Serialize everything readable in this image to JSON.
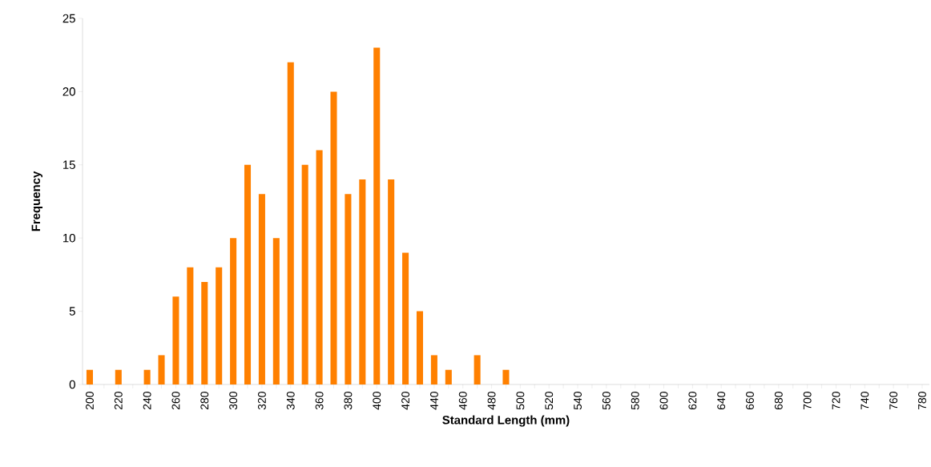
{
  "chart_data": {
    "type": "bar",
    "xlabel": "Standard Length (mm)",
    "ylabel": "Frequency",
    "categories": [
      "200",
      null,
      "220",
      null,
      "240",
      null,
      "260",
      null,
      "280",
      null,
      "300",
      null,
      "320",
      null,
      "340",
      null,
      "360",
      null,
      "380",
      null,
      "400",
      null,
      "420",
      null,
      "440",
      null,
      "460",
      null,
      "480",
      null,
      "500",
      null,
      "520",
      null,
      "540",
      null,
      "560",
      null,
      "580",
      null,
      "600",
      null,
      "620",
      null,
      "640",
      null,
      "660",
      null,
      "680",
      null,
      "700",
      null,
      "720",
      null,
      "740",
      null,
      "760",
      null,
      "780"
    ],
    "values": [
      1,
      0,
      1,
      0,
      1,
      2,
      6,
      8,
      7,
      8,
      10,
      15,
      13,
      10,
      22,
      15,
      16,
      20,
      13,
      14,
      23,
      14,
      9,
      5,
      2,
      1,
      0,
      2,
      0,
      1,
      0,
      0,
      0,
      0,
      0,
      0,
      0,
      0,
      0,
      0,
      0,
      0,
      0,
      0,
      0,
      0,
      0,
      0,
      0,
      0,
      0,
      0,
      0,
      0,
      0,
      0,
      0,
      0,
      0
    ],
    "color": "#ff8000",
    "ylim": [
      0,
      25
    ],
    "yticks": [
      0,
      5,
      10,
      15,
      20,
      25
    ],
    "grid": false
  }
}
